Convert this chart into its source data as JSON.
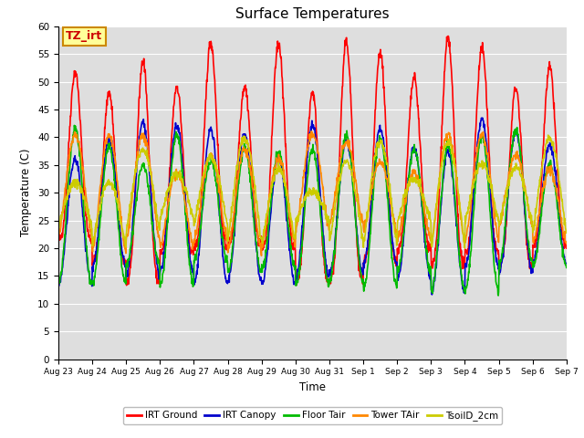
{
  "title": "Surface Temperatures",
  "xlabel": "Time",
  "ylabel": "Temperature (C)",
  "ylim": [
    0,
    60
  ],
  "yticks": [
    0,
    5,
    10,
    15,
    20,
    25,
    30,
    35,
    40,
    45,
    50,
    55,
    60
  ],
  "series": {
    "IRT Ground": {
      "color": "#ff0000",
      "linewidth": 1.2
    },
    "IRT Canopy": {
      "color": "#0000cc",
      "linewidth": 1.2
    },
    "Floor Tair": {
      "color": "#00bb00",
      "linewidth": 1.2
    },
    "Tower TAir": {
      "color": "#ff8800",
      "linewidth": 1.2
    },
    "TsoilD_2cm": {
      "color": "#cccc00",
      "linewidth": 1.2
    }
  },
  "annotation_text": "TZ_irt",
  "annotation_color": "#cc0000",
  "annotation_bg": "#ffff99",
  "annotation_border": "#cc8800",
  "bg_color": "#dedede",
  "tick_labels": [
    "Aug 23",
    "Aug 24",
    "Aug 25",
    "Aug 26",
    "Aug 27",
    "Aug 28",
    "Aug 29",
    "Aug 30",
    "Aug 31",
    "Sep 1",
    "Sep 2",
    "Sep 3",
    "Sep 4",
    "Sep 5",
    "Sep 6",
    "Sep 7"
  ],
  "n_days": 15
}
